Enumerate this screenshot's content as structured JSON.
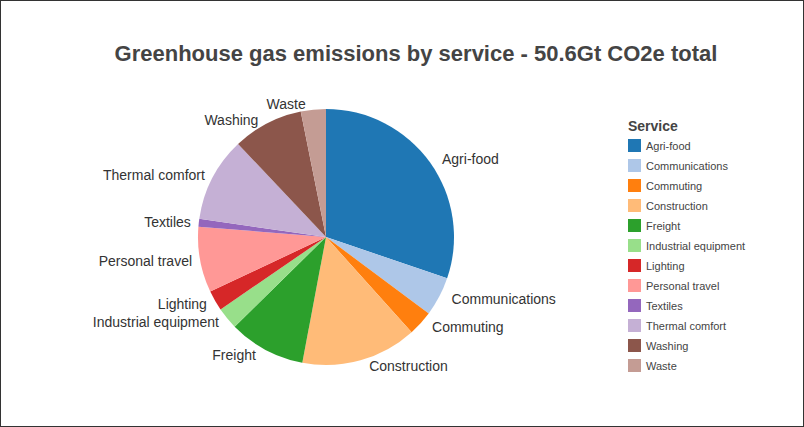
{
  "chart_data": {
    "type": "pie",
    "title": "Greenhouse gas emissions by service - 50.6Gt CO2e total",
    "legend_title": "Service",
    "legend": "right",
    "categories": [
      "Agri-food",
      "Communications",
      "Commuting",
      "Construction",
      "Freight",
      "Industrial equipment",
      "Lighting",
      "Personal travel",
      "Textiles",
      "Thermal comfort",
      "Washing",
      "Waste"
    ],
    "values": [
      15.3,
      2.5,
      1.6,
      7.4,
      4.9,
      1.4,
      1.3,
      4.2,
      0.5,
      5.4,
      4.5,
      1.6
    ],
    "colors": [
      "#1f77b4",
      "#aec7e8",
      "#ff7f0e",
      "#ffbb78",
      "#2ca02c",
      "#98df8a",
      "#d62728",
      "#ff9896",
      "#9467bd",
      "#c5b0d5",
      "#8c564b",
      "#c49c94"
    ]
  }
}
